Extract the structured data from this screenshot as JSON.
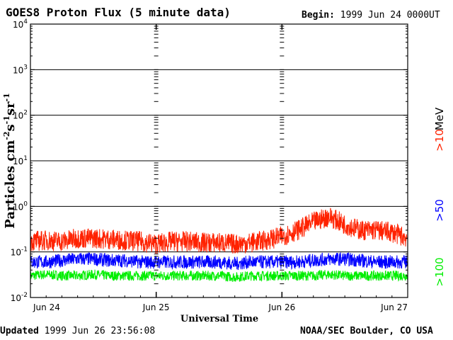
{
  "header": {
    "title": "GOES8 Proton Flux (5 minute data)",
    "begin_label": "Begin:",
    "begin_value": "1999 Jun 24 0000UT"
  },
  "footer": {
    "updated_label": "Updated",
    "updated_value": "1999 Jun 26 23:56:08",
    "credit": "NOAA/SEC Boulder, CO USA"
  },
  "colors": {
    "gt10": "#ff2200",
    "gt50": "#0000ff",
    "gt100": "#00ee00",
    "axis": "#000000"
  },
  "chart_data": {
    "type": "line",
    "title": "GOES8 Proton Flux (5 minute data)",
    "xlabel": "Universal Time",
    "ylabel_parts": {
      "main": "Particles cm",
      "e1": "-2",
      "s": "s",
      "e2": "-1",
      "sr": "sr",
      "e3": "-1"
    },
    "yscale": "log",
    "ylim": [
      0.01,
      10000
    ],
    "y_ticks": [
      {
        "base": "10",
        "exp": "-2",
        "value": 0.01
      },
      {
        "base": "10",
        "exp": "-1",
        "value": 0.1
      },
      {
        "base": "10",
        "exp": "0",
        "value": 1
      },
      {
        "base": "10",
        "exp": "1",
        "value": 10
      },
      {
        "base": "10",
        "exp": "2",
        "value": 100
      },
      {
        "base": "10",
        "exp": "3",
        "value": 1000
      },
      {
        "base": "10",
        "exp": "4",
        "value": 10000
      }
    ],
    "xlim": [
      0,
      72
    ],
    "x_ticks": [
      {
        "label": "Jun 24",
        "hour": 0
      },
      {
        "label": "Jun 25",
        "hour": 24
      },
      {
        "label": "Jun 26",
        "hour": 48
      },
      {
        "label": "Jun 27",
        "hour": 72
      }
    ],
    "legend_unit": "MeV",
    "series": [
      {
        "name": ">10",
        "color": "#ff2200",
        "x": [
          0,
          3,
          6,
          9,
          12,
          15,
          18,
          21,
          24,
          27,
          30,
          33,
          36,
          39,
          42,
          45,
          48,
          51,
          54,
          57,
          60,
          63,
          66,
          69,
          72
        ],
        "y": [
          0.17,
          0.18,
          0.17,
          0.2,
          0.2,
          0.19,
          0.18,
          0.17,
          0.15,
          0.17,
          0.17,
          0.16,
          0.16,
          0.15,
          0.16,
          0.18,
          0.22,
          0.3,
          0.45,
          0.6,
          0.4,
          0.3,
          0.3,
          0.27,
          0.2
        ]
      },
      {
        "name": ">50",
        "color": "#0000ff",
        "x": [
          0,
          3,
          6,
          9,
          12,
          15,
          18,
          21,
          24,
          27,
          30,
          33,
          36,
          39,
          42,
          45,
          48,
          51,
          54,
          57,
          60,
          63,
          66,
          69,
          72
        ],
        "y": [
          0.06,
          0.06,
          0.065,
          0.07,
          0.07,
          0.065,
          0.065,
          0.06,
          0.06,
          0.06,
          0.06,
          0.06,
          0.06,
          0.055,
          0.06,
          0.06,
          0.06,
          0.06,
          0.065,
          0.07,
          0.07,
          0.065,
          0.06,
          0.06,
          0.06
        ]
      },
      {
        "name": ">100",
        "color": "#00ee00",
        "x": [
          0,
          3,
          6,
          9,
          12,
          15,
          18,
          21,
          24,
          27,
          30,
          33,
          36,
          39,
          42,
          45,
          48,
          51,
          54,
          57,
          60,
          63,
          66,
          69,
          72
        ],
        "y": [
          0.03,
          0.032,
          0.03,
          0.03,
          0.032,
          0.03,
          0.03,
          0.03,
          0.03,
          0.03,
          0.03,
          0.03,
          0.03,
          0.028,
          0.03,
          0.03,
          0.03,
          0.03,
          0.03,
          0.032,
          0.03,
          0.03,
          0.03,
          0.03,
          0.03
        ]
      }
    ]
  }
}
